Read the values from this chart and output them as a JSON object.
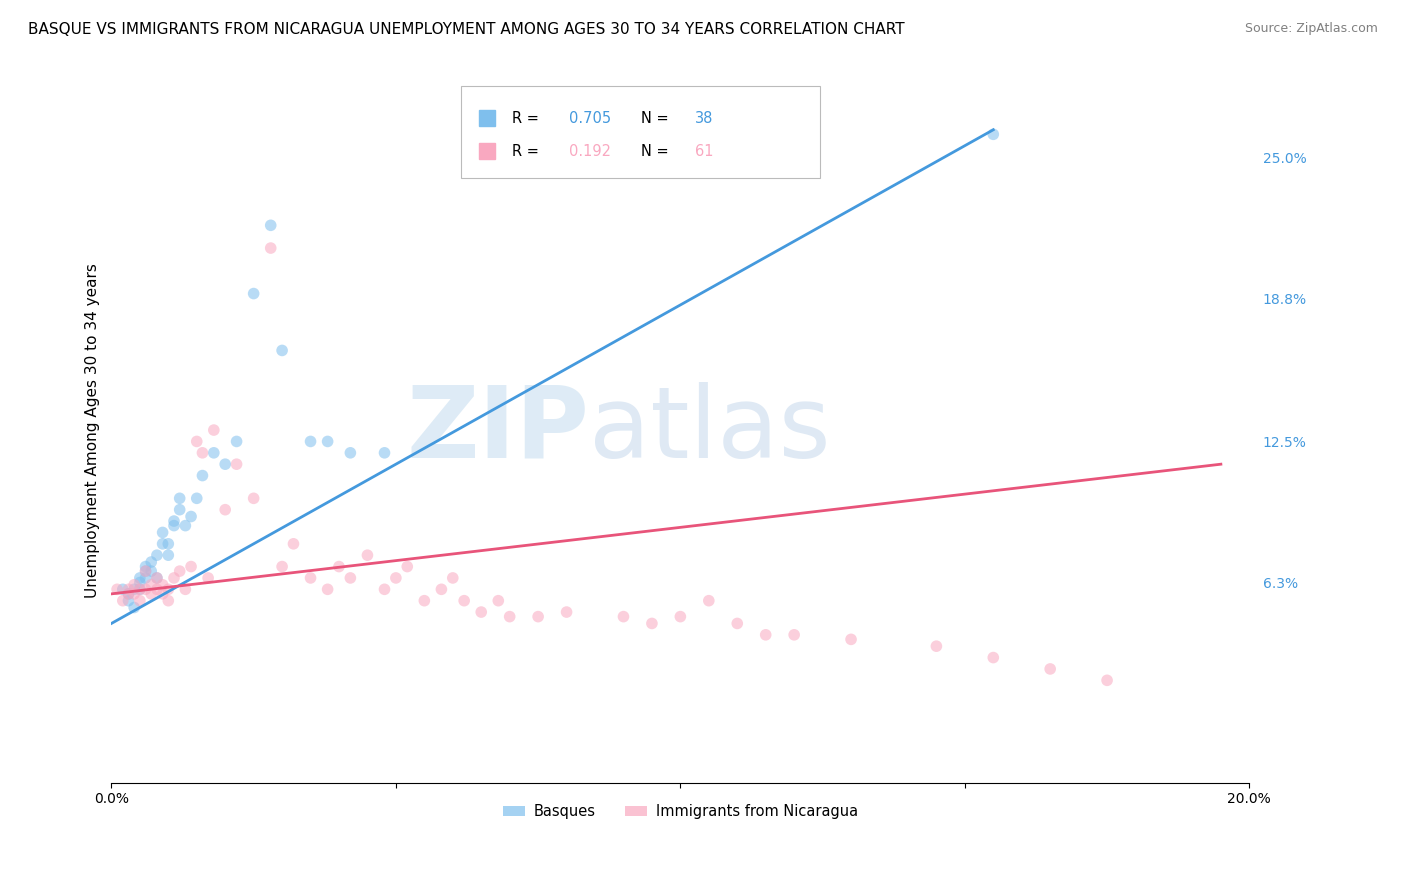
{
  "title": "BASQUE VS IMMIGRANTS FROM NICARAGUA UNEMPLOYMENT AMONG AGES 30 TO 34 YEARS CORRELATION CHART",
  "source": "Source: ZipAtlas.com",
  "ylabel": "Unemployment Among Ages 30 to 34 years",
  "xlim": [
    0.0,
    0.2
  ],
  "ylim": [
    -0.025,
    0.285
  ],
  "right_yticks": [
    0.063,
    0.125,
    0.188,
    0.25
  ],
  "right_yticklabels": [
    "6.3%",
    "12.5%",
    "18.8%",
    "25.0%"
  ],
  "watermark_zip": "ZIP",
  "watermark_atlas": "atlas",
  "basque_scatter_x": [
    0.002,
    0.003,
    0.003,
    0.004,
    0.004,
    0.005,
    0.005,
    0.005,
    0.006,
    0.006,
    0.006,
    0.007,
    0.007,
    0.008,
    0.008,
    0.009,
    0.009,
    0.01,
    0.01,
    0.011,
    0.011,
    0.012,
    0.012,
    0.013,
    0.014,
    0.015,
    0.016,
    0.018,
    0.02,
    0.022,
    0.025,
    0.028,
    0.03,
    0.035,
    0.038,
    0.042,
    0.048,
    0.155
  ],
  "basque_scatter_y": [
    0.06,
    0.058,
    0.055,
    0.06,
    0.052,
    0.063,
    0.065,
    0.06,
    0.07,
    0.068,
    0.065,
    0.072,
    0.068,
    0.065,
    0.075,
    0.08,
    0.085,
    0.075,
    0.08,
    0.09,
    0.088,
    0.095,
    0.1,
    0.088,
    0.092,
    0.1,
    0.11,
    0.12,
    0.115,
    0.125,
    0.19,
    0.22,
    0.165,
    0.125,
    0.125,
    0.12,
    0.12,
    0.26
  ],
  "nicaragua_scatter_x": [
    0.001,
    0.002,
    0.003,
    0.003,
    0.004,
    0.004,
    0.005,
    0.005,
    0.006,
    0.006,
    0.007,
    0.007,
    0.008,
    0.008,
    0.009,
    0.009,
    0.01,
    0.01,
    0.011,
    0.012,
    0.013,
    0.014,
    0.015,
    0.016,
    0.017,
    0.018,
    0.02,
    0.022,
    0.025,
    0.028,
    0.03,
    0.032,
    0.035,
    0.038,
    0.04,
    0.042,
    0.045,
    0.048,
    0.05,
    0.052,
    0.055,
    0.058,
    0.06,
    0.062,
    0.065,
    0.068,
    0.07,
    0.075,
    0.08,
    0.09,
    0.095,
    0.1,
    0.105,
    0.11,
    0.115,
    0.12,
    0.13,
    0.145,
    0.155,
    0.165,
    0.175
  ],
  "nicaragua_scatter_y": [
    0.06,
    0.055,
    0.06,
    0.058,
    0.062,
    0.058,
    0.06,
    0.055,
    0.068,
    0.06,
    0.062,
    0.058,
    0.065,
    0.06,
    0.062,
    0.058,
    0.06,
    0.055,
    0.065,
    0.068,
    0.06,
    0.07,
    0.125,
    0.12,
    0.065,
    0.13,
    0.095,
    0.115,
    0.1,
    0.21,
    0.07,
    0.08,
    0.065,
    0.06,
    0.07,
    0.065,
    0.075,
    0.06,
    0.065,
    0.07,
    0.055,
    0.06,
    0.065,
    0.055,
    0.05,
    0.055,
    0.048,
    0.048,
    0.05,
    0.048,
    0.045,
    0.048,
    0.055,
    0.045,
    0.04,
    0.04,
    0.038,
    0.035,
    0.03,
    0.025,
    0.02
  ],
  "basque_line_x": [
    0.0,
    0.155
  ],
  "basque_line_y": [
    0.045,
    0.262
  ],
  "nicaragua_line_x": [
    0.0,
    0.195
  ],
  "nicaragua_line_y": [
    0.058,
    0.115
  ],
  "basque_color": "#7fbfed",
  "nicaragua_color": "#f9a8c0",
  "basque_line_color": "#4499dd",
  "nicaragua_line_color": "#e8547a",
  "grid_color": "#cccccc",
  "background_color": "#ffffff",
  "title_fontsize": 11,
  "axis_label_fontsize": 11,
  "tick_fontsize": 10,
  "scatter_size": 70,
  "scatter_alpha": 0.55
}
